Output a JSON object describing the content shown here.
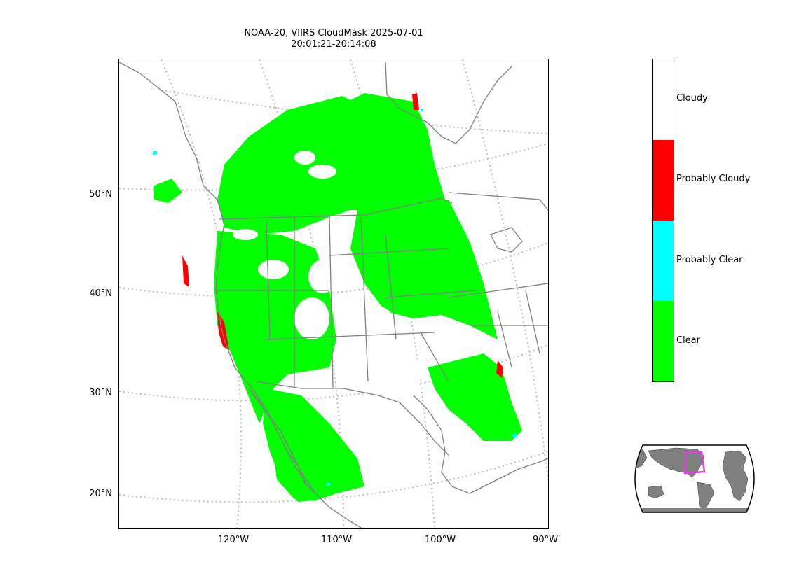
{
  "title": {
    "line1": "NOAA-20, VIIRS CloudMask 2025-07-01",
    "line2": "20:01:21-20:14:08"
  },
  "axes": {
    "lat_labels": [
      "50°N",
      "40°N",
      "30°N",
      "20°N"
    ],
    "lon_labels": [
      "120°W",
      "110°W",
      "100°W",
      "90°W"
    ]
  },
  "legend": {
    "items": [
      {
        "label": "Cloudy",
        "color": "#ffffff"
      },
      {
        "label": "Probably Cloudy",
        "color": "#ff0000"
      },
      {
        "label": "Probably Clear",
        "color": "#00ffff"
      },
      {
        "label": "Clear",
        "color": "#00ff00"
      }
    ]
  },
  "colors": {
    "graticule": "#bbbbbb",
    "borders": "#808080",
    "inset_land": "#808080",
    "inset_box": "#e040e0"
  },
  "icons": {
    "inset": "world-globe-locator"
  }
}
